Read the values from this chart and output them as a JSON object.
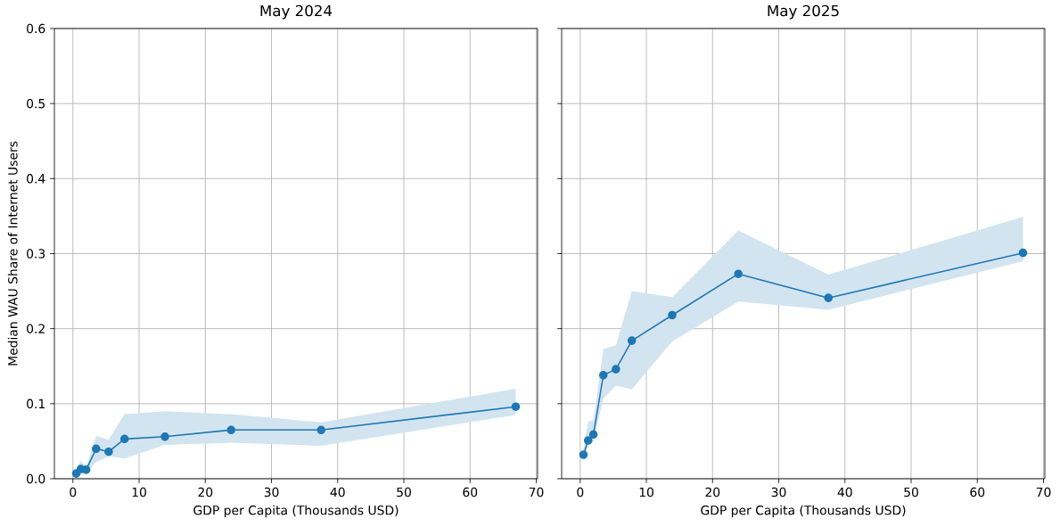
{
  "chart_data": [
    {
      "type": "line",
      "title": "May 2024",
      "xlabel": "GDP per Capita (Thousands USD)",
      "ylabel": "Median WAU Share of Internet Users",
      "x": [
        0.5,
        1.2,
        2.0,
        3.5,
        5.4,
        7.8,
        13.9,
        23.9,
        37.5,
        66.9
      ],
      "series": [
        {
          "color": "#1f77b4",
          "values": [
            0.007,
            0.013,
            0.012,
            0.04,
            0.036,
            0.053,
            0.056,
            0.065,
            0.065,
            0.096
          ],
          "lower": [
            0.003,
            0.005,
            0.008,
            0.022,
            0.03,
            0.027,
            0.045,
            0.048,
            0.044,
            0.085
          ],
          "upper": [
            0.012,
            0.024,
            0.015,
            0.057,
            0.052,
            0.086,
            0.09,
            0.086,
            0.075,
            0.12
          ]
        }
      ],
      "xlim": [
        -2.8,
        70.2
      ],
      "xticks": [
        0,
        10,
        20,
        30,
        40,
        50,
        60,
        70
      ],
      "ylim": [
        0,
        0.6
      ],
      "yticks": [
        {
          "value": 0,
          "label": "0.0"
        },
        0.1,
        0.2,
        0.3,
        0.4,
        0.5,
        0.6
      ],
      "grid": true,
      "marker": "circle",
      "line_style": "solid"
    },
    {
      "type": "line",
      "title": "May 2025",
      "xlabel": "GDP per Capita (Thousands USD)",
      "x": [
        0.5,
        1.2,
        2.0,
        3.5,
        5.4,
        7.8,
        13.9,
        23.9,
        37.5,
        66.9
      ],
      "series": [
        {
          "color": "#1f77b4",
          "values": [
            0.032,
            0.051,
            0.059,
            0.138,
            0.146,
            0.184,
            0.218,
            0.273,
            0.241,
            0.301
          ],
          "lower": [
            0.023,
            0.045,
            0.05,
            0.107,
            0.124,
            0.119,
            0.183,
            0.236,
            0.225,
            0.29
          ],
          "upper": [
            0.04,
            0.076,
            0.078,
            0.173,
            0.178,
            0.25,
            0.242,
            0.331,
            0.272,
            0.349
          ]
        }
      ],
      "xlim": [
        -2.8,
        70.2
      ],
      "xticks": [
        0,
        10,
        20,
        30,
        40,
        50,
        60,
        70
      ],
      "ylim": [
        0,
        0.6
      ],
      "yticks": [
        {
          "value": 0,
          "label": null
        },
        {
          "value": 0.1,
          "label": null
        },
        {
          "value": 0.2,
          "label": null
        },
        {
          "value": 0.3,
          "label": null
        },
        {
          "value": 0.4,
          "label": null
        },
        {
          "value": 0.5,
          "label": null
        },
        {
          "value": 0.6,
          "label": null
        }
      ],
      "tick_labels": "x",
      "grid": true,
      "marker": "circle",
      "line_style": "solid"
    }
  ]
}
